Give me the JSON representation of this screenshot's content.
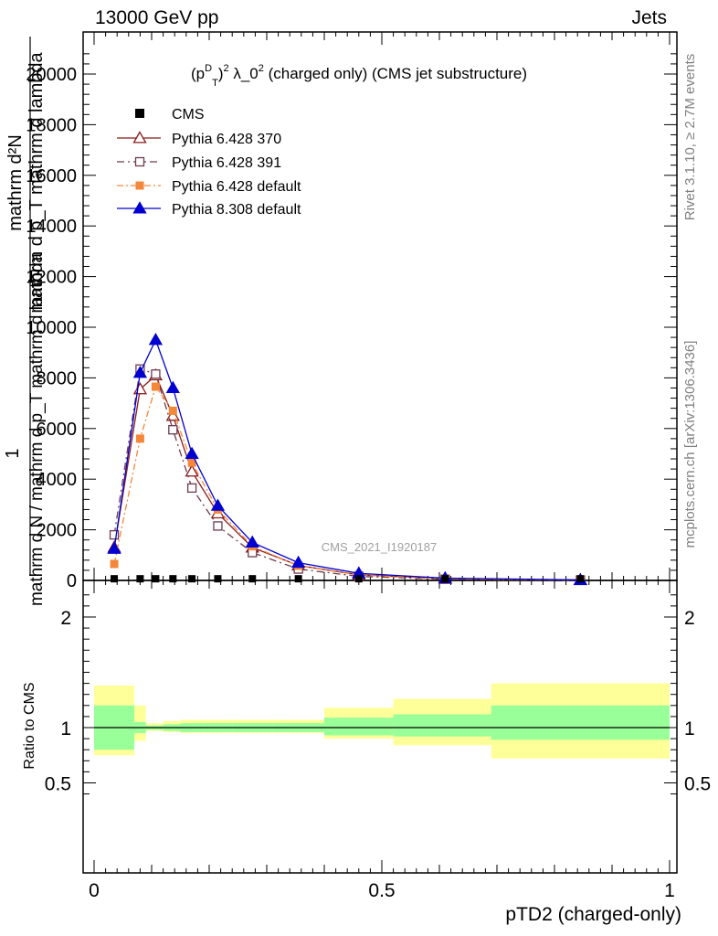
{
  "header": {
    "left": "13000 GeV pp",
    "right": "Jets"
  },
  "side": {
    "rivet": "Rivet 3.1.10, ≥ 2.7M events",
    "mcplots": "mcplots.cern.ch [arXiv:1306.3436]"
  },
  "chart_data": {
    "type": "line",
    "title": "(p_T^D)^2 λ_0^2 (charged only) (CMS jet substructure)",
    "title_parts": {
      "a": "(p",
      "sub": "T",
      "sup": "D",
      "b": ")",
      "sup2": "2",
      "c": " λ_0",
      "sup3": "2",
      "d": " (charged only) (CMS jet substructure)"
    },
    "watermark": "CMS_2021_I1920187",
    "xlabel": "pTD2 (charged-only)",
    "ylabel_top": "1",
    "ylabel_bottom": "mathrm d N / mathrm d p_T mathrm d lambda",
    "ylabel_top_stack": "mathrm d²N",
    "ylabel_overlap": "mathrm d p_T mathrm d lambda",
    "ratio_ylabel": "Ratio to CMS",
    "xlim": [
      0,
      1
    ],
    "ylim": [
      0,
      21500
    ],
    "ratio_ylim": [
      0.34,
      2.3
    ],
    "x_ticks": [
      "0",
      "0.5",
      "1"
    ],
    "y_ticks": [
      "0",
      "2000",
      "4000",
      "6000",
      "8000",
      "10000",
      "12000",
      "14000",
      "16000",
      "18000",
      "20000"
    ],
    "ratio_y_ticks": [
      "0.5",
      "1",
      "2"
    ],
    "legend_position": "top-left",
    "cms": {
      "name": "CMS",
      "x": [
        0.035,
        0.08,
        0.107,
        0.137,
        0.17,
        0.215,
        0.275,
        0.355,
        0.46,
        0.61,
        0.845
      ],
      "y": [
        30,
        30,
        30,
        30,
        30,
        30,
        30,
        30,
        30,
        30,
        30
      ],
      "bin_edges": [
        0,
        0.07,
        0.09,
        0.12,
        0.15,
        0.19,
        0.24,
        0.31,
        0.4,
        0.52,
        0.69,
        1.0
      ]
    },
    "series": [
      {
        "name": "Pythia 6.428 370",
        "color": "#8b1a1a",
        "x": [
          0.035,
          0.08,
          0.107,
          0.137,
          0.17,
          0.215,
          0.275,
          0.355,
          0.46,
          0.61,
          0.845
        ],
        "y": [
          1300,
          7550,
          8100,
          6500,
          4300,
          2650,
          1300,
          590,
          220,
          70,
          15
        ]
      },
      {
        "name": "Pythia 6.428 391",
        "color": "#6e3a4e",
        "x": [
          0.035,
          0.08,
          0.107,
          0.137,
          0.17,
          0.215,
          0.275,
          0.355,
          0.46,
          0.61,
          0.845
        ],
        "y": [
          1800,
          8350,
          8150,
          5950,
          3650,
          2150,
          1100,
          450,
          160,
          50,
          12
        ]
      },
      {
        "name": "Pythia 6.428 default",
        "color": "#f4873a",
        "x": [
          0.035,
          0.08,
          0.107,
          0.137,
          0.17,
          0.215,
          0.275,
          0.355,
          0.46,
          0.61,
          0.845
        ],
        "y": [
          650,
          5600,
          7650,
          6700,
          4650,
          2800,
          1350,
          580,
          210,
          65,
          14
        ]
      },
      {
        "name": "Pythia 8.308 default",
        "color": "#0000d0",
        "x": [
          0.035,
          0.08,
          0.107,
          0.137,
          0.17,
          0.215,
          0.275,
          0.355,
          0.46,
          0.61,
          0.845
        ],
        "y": [
          1250,
          8200,
          9500,
          7600,
          5000,
          2950,
          1500,
          700,
          280,
          90,
          20
        ]
      }
    ],
    "ratio_band_inner": [
      [
        0.8,
        1.2
      ],
      [
        0.95,
        1.05
      ],
      [
        0.98,
        1.02
      ],
      [
        0.97,
        1.03
      ],
      [
        0.96,
        1.04
      ],
      [
        0.96,
        1.04
      ],
      [
        0.96,
        1.04
      ],
      [
        0.96,
        1.04
      ],
      [
        0.93,
        1.09
      ],
      [
        0.92,
        1.12
      ],
      [
        0.89,
        1.2
      ]
    ],
    "ratio_band_outer": [
      [
        0.75,
        1.38
      ],
      [
        0.88,
        1.2
      ],
      [
        0.97,
        1.04
      ],
      [
        0.96,
        1.06
      ],
      [
        0.95,
        1.07
      ],
      [
        0.95,
        1.07
      ],
      [
        0.95,
        1.07
      ],
      [
        0.95,
        1.07
      ],
      [
        0.9,
        1.18
      ],
      [
        0.84,
        1.26
      ],
      [
        0.72,
        1.4
      ]
    ]
  }
}
